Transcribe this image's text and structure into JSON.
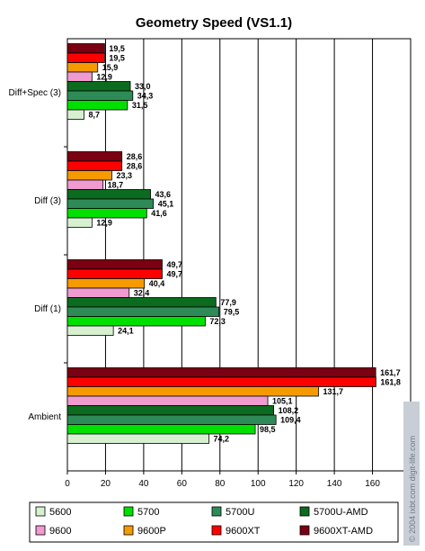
{
  "chart_data": {
    "type": "bar",
    "orientation": "horizontal",
    "title": "Geometry Speed (VS1.1)",
    "categories": [
      "Diff+Spec (3)",
      "Diff (3)",
      "Diff (1)",
      "Ambient"
    ],
    "xlim": [
      0,
      180
    ],
    "xticks": [
      "0",
      "20",
      "40",
      "60",
      "80",
      "100",
      "120",
      "140",
      "160"
    ],
    "grid": true,
    "legend_position": "bottom",
    "series": [
      {
        "name": "5600",
        "color": "#d6f0d0",
        "values": [
          8.7,
          12.9,
          24.1,
          74.2
        ],
        "labels": [
          "8,7",
          "12,9",
          "24,1",
          "74,2"
        ]
      },
      {
        "name": "5700",
        "color": "#00e000",
        "values": [
          31.5,
          41.6,
          72.3,
          98.5
        ],
        "labels": [
          "31,5",
          "41,6",
          "72,3",
          "98,5"
        ]
      },
      {
        "name": "5700U",
        "color": "#2e8b57",
        "values": [
          34.3,
          45.1,
          79.5,
          109.4
        ],
        "labels": [
          "34,3",
          "45,1",
          "79,5",
          "109,4"
        ]
      },
      {
        "name": "5700U-AMD",
        "color": "#0b6b1e",
        "values": [
          33.0,
          43.6,
          77.9,
          108.2
        ],
        "labels": [
          "33,0",
          "43,6",
          "77,9",
          "108,2"
        ]
      },
      {
        "name": "9600",
        "color": "#f09ad0",
        "values": [
          12.9,
          18.7,
          32.4,
          105.1
        ],
        "labels": [
          "12,9",
          "18,7",
          "32,4",
          "105,1"
        ]
      },
      {
        "name": "9600P",
        "color": "#f59a00",
        "values": [
          15.9,
          23.3,
          40.4,
          131.7
        ],
        "labels": [
          "15,9",
          "23,3",
          "40,4",
          "131,7"
        ]
      },
      {
        "name": "9600XT",
        "color": "#ff0000",
        "values": [
          19.5,
          28.6,
          49.7,
          161.8
        ],
        "labels": [
          "19,5",
          "28,6",
          "49,7",
          "161,8"
        ]
      },
      {
        "name": "9600XT-AMD",
        "color": "#7a0012",
        "values": [
          19.5,
          28.6,
          49.7,
          161.7
        ],
        "labels": [
          "19,5",
          "28,6",
          "49,7",
          "161,7"
        ]
      }
    ]
  },
  "watermark": "© 2004 ixbt.com digit-life.com"
}
